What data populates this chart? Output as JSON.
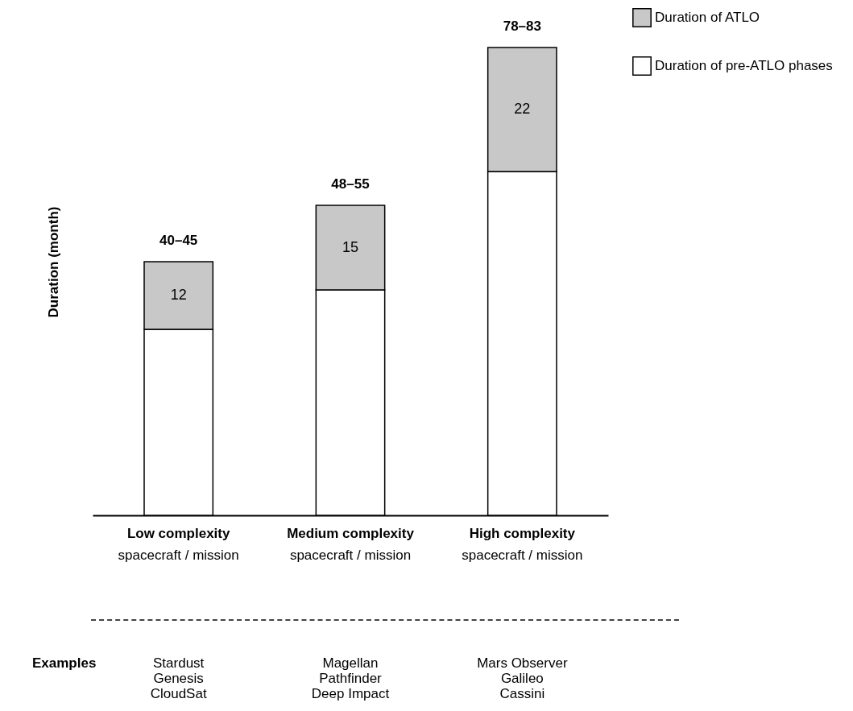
{
  "chart_data": {
    "type": "bar",
    "stacked": true,
    "ylabel": "Duration (month)",
    "categories": [
      "Low complexity",
      "Medium complexity",
      "High complexity"
    ],
    "series": [
      {
        "name": "Duration of pre-ATLO phases",
        "color": "#ffffff",
        "values": [
          33,
          40,
          61
        ]
      },
      {
        "name": "Duration of ATLO",
        "color": "#c8c8c8",
        "values": [
          12,
          15,
          22
        ],
        "value_labels": [
          "12",
          "15",
          "22"
        ]
      }
    ],
    "totals": [
      "40–45",
      "48–55",
      "78–83"
    ],
    "legend": "right",
    "tick_labels": "x",
    "annotations": [
      "spacecraft / mission",
      "spacecraft / mission",
      "spacecraft / mission",
      "Examples",
      "Stardust\nGenesis\nCloudSat",
      "Magellan\nPathfinder\nDeep Impact",
      "Mars Observer\nGalileo\nCassini"
    ]
  }
}
